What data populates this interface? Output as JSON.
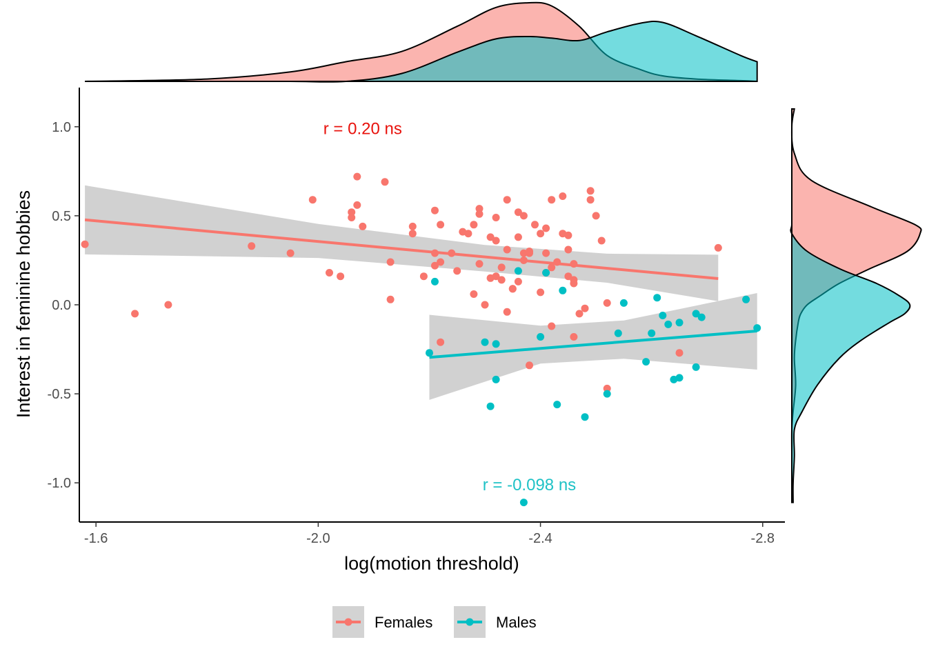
{
  "chart_data": {
    "type": "scatter",
    "xlabel": "log(motion threshold)",
    "ylabel": "Interest in feminine hobbies",
    "x_reversed": true,
    "xlim": [
      -1.57,
      -2.84
    ],
    "ylim": [
      -1.22,
      1.22
    ],
    "x_ticks": [
      -1.6,
      -2.0,
      -2.4,
      -2.8
    ],
    "x_tick_labels": [
      "-1.6",
      "-2.0",
      "-2.4",
      "-2.8"
    ],
    "y_ticks": [
      1.0,
      0.5,
      0.0,
      -0.5,
      -1.0
    ],
    "y_tick_labels": [
      "1.0",
      "0.5",
      "0.0",
      "-0.5",
      "-1.0"
    ],
    "legend": {
      "position": "bottom",
      "entries": [
        "Females",
        "Males"
      ]
    },
    "colors": {
      "Females": "#F8766D",
      "Males": "#00BFC4",
      "ribbon": "#BEBEBE",
      "density_overlap": "#8AB0AD"
    },
    "annotations": [
      {
        "text": "r = 0.20 ns",
        "x": -2.08,
        "y": 0.99,
        "series": "Females"
      },
      {
        "text": "r = -0.098 ns",
        "x": -2.38,
        "y": -1.01,
        "series": "Males"
      }
    ],
    "series": [
      {
        "name": "Females",
        "points": [
          [
            -1.58,
            0.34
          ],
          [
            -1.67,
            -0.05
          ],
          [
            -1.73,
            0.0
          ],
          [
            -1.88,
            0.33
          ],
          [
            -1.95,
            0.29
          ],
          [
            -1.99,
            0.59
          ],
          [
            -2.02,
            0.18
          ],
          [
            -2.04,
            0.16
          ],
          [
            -2.06,
            0.52
          ],
          [
            -2.07,
            0.72
          ],
          [
            -2.06,
            0.49
          ],
          [
            -2.07,
            0.56
          ],
          [
            -2.08,
            0.44
          ],
          [
            -2.12,
            0.69
          ],
          [
            -2.13,
            0.24
          ],
          [
            -2.13,
            0.03
          ],
          [
            -2.17,
            0.44
          ],
          [
            -2.17,
            0.4
          ],
          [
            -2.19,
            0.16
          ],
          [
            -2.21,
            0.22
          ],
          [
            -2.21,
            0.29
          ],
          [
            -2.21,
            0.53
          ],
          [
            -2.22,
            0.24
          ],
          [
            -2.22,
            0.45
          ],
          [
            -2.24,
            0.29
          ],
          [
            -2.25,
            0.19
          ],
          [
            -2.26,
            0.41
          ],
          [
            -2.27,
            0.4
          ],
          [
            -2.28,
            0.45
          ],
          [
            -2.28,
            0.06
          ],
          [
            -2.29,
            0.23
          ],
          [
            -2.29,
            0.54
          ],
          [
            -2.29,
            0.51
          ],
          [
            -2.3,
            0.0
          ],
          [
            -2.31,
            0.15
          ],
          [
            -2.31,
            0.38
          ],
          [
            -2.32,
            0.16
          ],
          [
            -2.32,
            0.49
          ],
          [
            -2.32,
            0.36
          ],
          [
            -2.33,
            0.21
          ],
          [
            -2.33,
            0.14
          ],
          [
            -2.34,
            0.59
          ],
          [
            -2.34,
            0.31
          ],
          [
            -2.34,
            -0.04
          ],
          [
            -2.35,
            0.09
          ],
          [
            -2.35,
            0.09
          ],
          [
            -2.36,
            0.13
          ],
          [
            -2.36,
            0.38
          ],
          [
            -2.36,
            0.52
          ],
          [
            -2.37,
            0.5
          ],
          [
            -2.37,
            0.29
          ],
          [
            -2.37,
            0.25
          ],
          [
            -2.38,
            0.29
          ],
          [
            -2.38,
            0.3
          ],
          [
            -2.39,
            0.45
          ],
          [
            -2.4,
            0.4
          ],
          [
            -2.4,
            0.07
          ],
          [
            -2.41,
            0.18
          ],
          [
            -2.41,
            0.43
          ],
          [
            -2.41,
            0.29
          ],
          [
            -2.42,
            0.59
          ],
          [
            -2.42,
            0.21
          ],
          [
            -2.42,
            -0.12
          ],
          [
            -2.43,
            0.24
          ],
          [
            -2.44,
            0.61
          ],
          [
            -2.44,
            0.4
          ],
          [
            -2.45,
            0.31
          ],
          [
            -2.45,
            0.16
          ],
          [
            -2.45,
            0.39
          ],
          [
            -2.46,
            0.23
          ],
          [
            -2.46,
            0.14
          ],
          [
            -2.46,
            0.12
          ],
          [
            -2.47,
            -0.05
          ],
          [
            -2.48,
            -0.02
          ],
          [
            -2.49,
            0.59
          ],
          [
            -2.49,
            0.64
          ],
          [
            -2.5,
            0.5
          ],
          [
            -2.51,
            0.36
          ],
          [
            -2.52,
            0.01
          ],
          [
            -2.22,
            -0.21
          ],
          [
            -2.38,
            -0.34
          ],
          [
            -2.46,
            -0.18
          ],
          [
            -2.52,
            -0.47
          ],
          [
            -2.65,
            -0.27
          ],
          [
            -2.72,
            0.32
          ]
        ]
      },
      {
        "name": "Males",
        "points": [
          [
            -2.2,
            -0.27
          ],
          [
            -2.21,
            0.13
          ],
          [
            -2.3,
            -0.21
          ],
          [
            -2.31,
            -0.57
          ],
          [
            -2.32,
            -0.42
          ],
          [
            -2.32,
            -0.22
          ],
          [
            -2.36,
            0.19
          ],
          [
            -2.4,
            -0.18
          ],
          [
            -2.41,
            0.18
          ],
          [
            -2.43,
            -0.56
          ],
          [
            -2.44,
            0.08
          ],
          [
            -2.48,
            -0.63
          ],
          [
            -2.52,
            -0.5
          ],
          [
            -2.54,
            -0.16
          ],
          [
            -2.55,
            0.01
          ],
          [
            -2.59,
            -0.32
          ],
          [
            -2.6,
            -0.16
          ],
          [
            -2.61,
            0.04
          ],
          [
            -2.62,
            -0.06
          ],
          [
            -2.63,
            -0.11
          ],
          [
            -2.64,
            -0.42
          ],
          [
            -2.65,
            -0.41
          ],
          [
            -2.65,
            -0.1
          ],
          [
            -2.68,
            -0.05
          ],
          [
            -2.68,
            -0.35
          ],
          [
            -2.69,
            -0.07
          ],
          [
            -2.77,
            0.03
          ],
          [
            -2.79,
            -0.13
          ],
          [
            -2.37,
            -1.11
          ]
        ]
      }
    ],
    "fits": [
      {
        "series": "Females",
        "x": [
          -1.58,
          -2.72
        ],
        "y": [
          0.477,
          0.147
        ],
        "ribbon": {
          "x": [
            -1.58,
            -2.0,
            -2.3,
            -2.52,
            -2.72
          ],
          "lower": [
            0.283,
            0.263,
            0.187,
            0.124,
            0.02
          ],
          "upper": [
            0.671,
            0.454,
            0.336,
            0.287,
            0.281
          ]
        }
      },
      {
        "series": "Males",
        "x": [
          -2.2,
          -2.79
        ],
        "y": [
          -0.295,
          -0.147
        ],
        "ribbon": {
          "x": [
            -2.2,
            -2.4,
            -2.55,
            -2.79
          ],
          "lower": [
            -0.534,
            -0.33,
            -0.303,
            -0.364
          ],
          "upper": [
            -0.056,
            -0.117,
            -0.088,
            0.066
          ]
        }
      }
    ],
    "marginal_x_density": {
      "x": [
        -1.58,
        -1.8,
        -1.95,
        -2.05,
        -2.15,
        -2.25,
        -2.32,
        -2.38,
        -2.42,
        -2.47,
        -2.52,
        -2.58,
        -2.62,
        -2.68,
        -2.76,
        -2.79
      ],
      "Females": [
        0.0,
        0.03,
        0.12,
        0.25,
        0.38,
        0.7,
        0.94,
        1.0,
        0.96,
        0.7,
        0.33,
        0.15,
        0.07,
        0.03,
        0.01,
        0.0
      ],
      "Males": [
        0.0,
        0.0,
        0.0,
        0.0,
        0.1,
        0.37,
        0.54,
        0.57,
        0.55,
        0.52,
        0.63,
        0.74,
        0.75,
        0.58,
        0.33,
        0.25
      ]
    },
    "marginal_y_density": {
      "y": [
        1.1,
        1.0,
        0.85,
        0.7,
        0.55,
        0.45,
        0.4,
        0.3,
        0.2,
        0.12,
        0.05,
        0.0,
        -0.05,
        -0.1,
        -0.2,
        -0.3,
        -0.45,
        -0.6,
        -0.7,
        -0.85,
        -1.0,
        -1.11
      ],
      "Females": [
        0.02,
        0.0,
        0.02,
        0.15,
        0.62,
        0.96,
        1.0,
        0.9,
        0.6,
        0.37,
        0.22,
        0.12,
        0.07,
        0.05,
        0.03,
        0.02,
        0.03,
        0.01,
        0.0,
        0.0,
        0.0,
        0.0
      ],
      "Males": [
        0.0,
        0.0,
        0.0,
        0.0,
        0.0,
        0.0,
        0.0,
        0.12,
        0.38,
        0.66,
        0.84,
        0.92,
        0.88,
        0.76,
        0.54,
        0.37,
        0.2,
        0.08,
        0.02,
        0.02,
        0.01,
        0.01
      ]
    }
  }
}
